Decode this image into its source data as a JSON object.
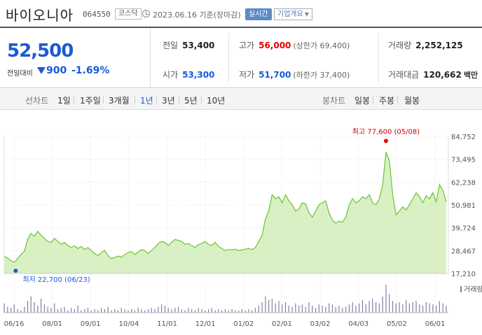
{
  "header": {
    "name": "바이오니아",
    "code": "064550",
    "market": "코스닥",
    "date": "2023.06.16 기준(장마감)",
    "realtime": "실시간",
    "company_info": "기업개요"
  },
  "price": {
    "current": "52,500",
    "prev_label": "전일대비",
    "change": "900",
    "change_pct": "-1.69%",
    "direction": "down"
  },
  "stats": {
    "prev_close": {
      "label": "전일",
      "value": "53,400"
    },
    "high": {
      "label": "고가",
      "value": "56,000",
      "sub": "(상한가 69,400)"
    },
    "volume": {
      "label": "거래량",
      "value": "2,252,125"
    },
    "open": {
      "label": "시가",
      "value": "53,300"
    },
    "low": {
      "label": "저가",
      "value": "51,700",
      "sub": "(하한가 37,400)"
    },
    "trade_value": {
      "label": "거래대금",
      "value": "120,662",
      "unit": "백만"
    }
  },
  "tabs": {
    "line_chart": "선차트",
    "periods": [
      "1일",
      "1주일",
      "3개월",
      "1년",
      "3년",
      "5년",
      "10년"
    ],
    "active_period": "1년",
    "candle_chart": "봉차트",
    "candle_periods": [
      "일봉",
      "주봉",
      "월봉"
    ]
  },
  "colors": {
    "price_blue": "#1a5ad6",
    "up_red": "#e60000",
    "area_fill": "#d9f0c4",
    "line_green": "#74c83b",
    "volume": "#8080a8"
  },
  "chart_data": {
    "type": "area",
    "y_ticks": [
      "84,752",
      "73,495",
      "62,238",
      "50,981",
      "39,724",
      "28,467",
      "17,210"
    ],
    "ylim": [
      17210,
      84752
    ],
    "x_ticks": [
      "06/16",
      "08/01",
      "09/01",
      "10/04",
      "11/01",
      "12/01",
      "01/02",
      "02/01",
      "03/02",
      "04/03",
      "05/02",
      "06/01"
    ],
    "high_annotation": "최고 77,600 (05/08)",
    "low_annotation": "최저 22,700 (06/23)",
    "volume_label": "거래량",
    "series": [
      {
        "values": [
          25500,
          24800,
          23500,
          22700,
          24500,
          26500,
          28000,
          34000,
          37000,
          35500,
          38000,
          36000,
          34500,
          33000,
          32500,
          34500,
          33000,
          31500,
          32500,
          31000,
          30000,
          30800,
          29500,
          30500,
          29000,
          30000,
          28500,
          27000,
          26000,
          27500,
          28500,
          26000,
          24500,
          25000,
          25800,
          25200,
          26500,
          27500,
          28000,
          26500,
          27800,
          29000,
          28500,
          27000,
          28500,
          30000,
          32000,
          33000,
          32500,
          31000,
          32500,
          34000,
          33500,
          33000,
          31500,
          32000,
          31000,
          30000,
          31500,
          32000,
          33000,
          31500,
          31000,
          32500,
          30500,
          29500,
          28500,
          29000,
          28800,
          29200,
          28500,
          28800,
          29200,
          29500,
          29000,
          30000,
          33000,
          36000,
          44000,
          48000,
          56000,
          54000,
          55000,
          52000,
          56000,
          53000,
          51000,
          48000,
          49000,
          52000,
          51500,
          47000,
          45000,
          48000,
          51000,
          52000,
          53000,
          47000,
          43500,
          42000,
          43000,
          42500,
          45000,
          51000,
          54000,
          52000,
          53000,
          55000,
          54000,
          56000,
          52000,
          51000,
          54000,
          61000,
          77000,
          73000,
          56000,
          46000,
          48000,
          50000,
          48500,
          51000,
          54000,
          57000,
          55000,
          52000,
          55500,
          54000,
          57000,
          52500,
          61000,
          58000,
          52500
        ]
      }
    ],
    "volume": [
      8,
      5,
      4,
      7,
      3,
      2,
      5,
      10,
      14,
      9,
      6,
      12,
      7,
      5,
      4,
      8,
      3,
      4,
      5,
      2,
      4,
      3,
      6,
      2,
      3,
      4,
      2,
      3,
      2,
      4,
      3,
      5,
      2,
      3,
      2,
      4,
      3,
      2,
      3,
      2,
      4,
      3,
      2,
      3,
      4,
      3,
      5,
      7,
      6,
      4,
      3,
      4,
      5,
      3,
      2,
      4,
      3,
      2,
      4,
      3,
      2,
      3,
      4,
      2,
      3,
      2,
      3,
      2,
      3,
      2,
      2,
      3,
      2,
      3,
      2,
      4,
      6,
      9,
      14,
      11,
      12,
      8,
      10,
      7,
      9,
      6,
      5,
      8,
      6,
      7,
      5,
      9,
      6,
      4,
      7,
      6,
      5,
      8,
      7,
      5,
      6,
      4,
      5,
      7,
      9,
      6,
      8,
      11,
      7,
      10,
      12,
      9,
      8,
      14,
      24,
      16,
      10,
      8,
      9,
      7,
      11,
      8,
      9,
      10,
      7,
      6,
      9,
      8,
      7,
      6,
      10,
      8,
      6
    ]
  }
}
